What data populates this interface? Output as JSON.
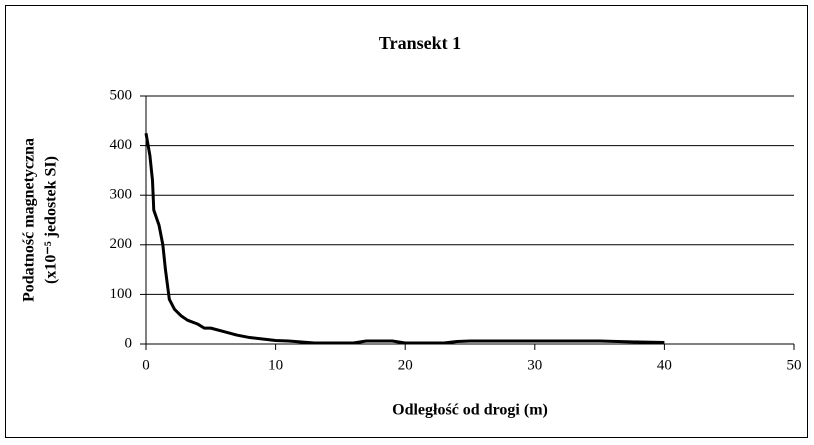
{
  "chart_data": {
    "type": "line",
    "title": "Transekt 1",
    "xlabel": "Odległość od drogi (m)",
    "ylabel": [
      "Podatność magnetyczna",
      "(x10⁻⁵ jedostek SI)"
    ],
    "series": [
      {
        "name": "Transekt 1",
        "color": "#000000",
        "x": [
          0,
          0.3,
          0.5,
          0.6,
          1.0,
          1.3,
          1.5,
          1.8,
          2.2,
          2.7,
          3.2,
          4,
          4.5,
          5,
          6,
          7,
          8,
          9,
          10,
          11,
          12,
          13,
          15,
          16,
          17,
          19,
          20,
          23,
          24,
          25,
          30,
          35,
          38,
          40
        ],
        "values": [
          425,
          380,
          330,
          270,
          240,
          200,
          150,
          90,
          70,
          57,
          48,
          40,
          32,
          32,
          25,
          18,
          13,
          10,
          7,
          6,
          4,
          2,
          2,
          2,
          6,
          6,
          2,
          2,
          5,
          6,
          6,
          6,
          4,
          3
        ]
      }
    ],
    "xlim": [
      0,
      50
    ],
    "xticks": [
      0,
      10,
      20,
      30,
      40,
      50
    ],
    "ylim": [
      0,
      500
    ],
    "yticks": [
      0,
      100,
      200,
      300,
      400,
      500
    ],
    "grid": true
  }
}
